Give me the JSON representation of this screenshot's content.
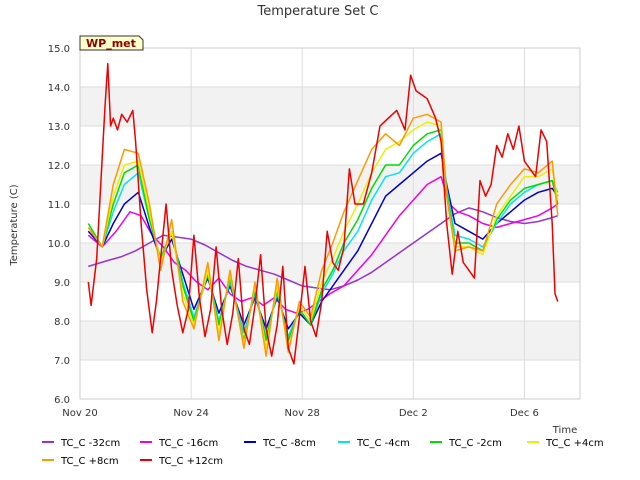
{
  "chart_data": {
    "type": "line",
    "title": "Temperature Set C",
    "xlabel": "Time",
    "ylabel": "Temperature (C)",
    "badge": "WP_met",
    "xlim": [
      0,
      18
    ],
    "ylim": [
      6.0,
      15.0
    ],
    "x_ticks": [
      {
        "x": 0,
        "label": "Nov 20"
      },
      {
        "x": 4,
        "label": "Nov 24"
      },
      {
        "x": 8,
        "label": "Nov 28"
      },
      {
        "x": 12,
        "label": "Dec 2"
      },
      {
        "x": 16,
        "label": "Dec 6"
      }
    ],
    "y_ticks": [
      "6.0",
      "7.0",
      "8.0",
      "9.0",
      "10.0",
      "11.0",
      "12.0",
      "13.0",
      "14.0",
      "15.0"
    ],
    "grid": true,
    "legend_position": "bottom",
    "series": [
      {
        "name": "TC_C -32cm",
        "color": "#9933cc",
        "x": [
          0.3,
          1.0,
          1.5,
          2.0,
          2.5,
          3.0,
          3.5,
          4.0,
          4.5,
          5.0,
          5.5,
          6.0,
          6.5,
          7.0,
          7.5,
          8.0,
          8.5,
          9.0,
          9.5,
          10.0,
          10.5,
          11.0,
          11.5,
          12.0,
          12.5,
          13.0,
          13.5,
          14.0,
          14.5,
          15.0,
          15.5,
          16.0,
          16.5,
          17.0,
          17.2
        ],
        "y": [
          9.4,
          9.55,
          9.65,
          9.8,
          10.0,
          10.2,
          10.15,
          10.1,
          9.95,
          9.75,
          9.55,
          9.4,
          9.3,
          9.2,
          9.05,
          8.9,
          8.85,
          8.8,
          8.9,
          9.05,
          9.25,
          9.5,
          9.75,
          10.0,
          10.25,
          10.5,
          10.75,
          10.9,
          10.8,
          10.65,
          10.55,
          10.5,
          10.55,
          10.65,
          10.7
        ]
      },
      {
        "name": "TC_C -16cm",
        "color": "#ee00ee",
        "x": [
          0.3,
          0.8,
          1.3,
          1.8,
          2.2,
          2.6,
          3.0,
          3.4,
          3.8,
          4.2,
          4.6,
          5.0,
          5.4,
          5.8,
          6.2,
          6.6,
          7.0,
          7.4,
          7.8,
          8.2,
          8.6,
          9.0,
          9.5,
          10.0,
          10.5,
          11.0,
          11.5,
          12.0,
          12.5,
          13.0,
          13.3,
          13.6,
          14.0,
          14.5,
          15.0,
          15.5,
          16.0,
          16.5,
          17.0,
          17.2
        ],
        "y": [
          10.2,
          9.9,
          10.3,
          10.8,
          10.7,
          10.2,
          9.9,
          9.5,
          9.3,
          9.0,
          8.8,
          9.1,
          8.7,
          8.5,
          8.6,
          8.4,
          8.6,
          8.3,
          8.2,
          8.3,
          8.5,
          8.7,
          8.9,
          9.3,
          9.7,
          10.2,
          10.7,
          11.1,
          11.5,
          11.7,
          11.0,
          10.8,
          10.7,
          10.5,
          10.4,
          10.5,
          10.6,
          10.7,
          10.9,
          11.0
        ]
      },
      {
        "name": "TC_C -8cm",
        "color": "#0000cc",
        "x": [
          0.3,
          0.8,
          1.2,
          1.6,
          2.1,
          2.5,
          2.9,
          3.3,
          3.7,
          4.1,
          4.6,
          5.0,
          5.4,
          5.9,
          6.3,
          6.7,
          7.1,
          7.5,
          7.9,
          8.3,
          8.7,
          9.1,
          9.5,
          10.0,
          10.5,
          11.0,
          11.5,
          12.0,
          12.5,
          13.0,
          13.2,
          13.5,
          14.0,
          14.5,
          15.0,
          15.5,
          16.0,
          16.5,
          17.0,
          17.2
        ],
        "y": [
          10.3,
          9.9,
          10.5,
          11.0,
          11.3,
          10.4,
          9.6,
          10.1,
          9.2,
          8.3,
          9.1,
          8.2,
          8.9,
          7.9,
          8.6,
          7.8,
          8.6,
          7.8,
          8.2,
          7.9,
          8.5,
          8.9,
          9.3,
          9.8,
          10.5,
          11.2,
          11.5,
          11.8,
          12.1,
          12.3,
          11.5,
          10.5,
          10.3,
          10.1,
          10.5,
          10.8,
          11.1,
          11.3,
          11.4,
          11.2
        ]
      },
      {
        "name": "TC_C -4cm",
        "color": "#00e5ee",
        "x": [
          0.3,
          0.8,
          1.2,
          1.6,
          2.1,
          2.5,
          2.9,
          3.3,
          3.7,
          4.1,
          4.6,
          5.0,
          5.4,
          5.9,
          6.3,
          6.7,
          7.1,
          7.5,
          7.9,
          8.3,
          8.7,
          9.1,
          9.5,
          10.0,
          10.5,
          11.0,
          11.5,
          12.0,
          12.5,
          13.0,
          13.2,
          13.5,
          14.0,
          14.5,
          15.0,
          15.5,
          16.0,
          16.5,
          17.0,
          17.2
        ],
        "y": [
          10.4,
          9.9,
          10.8,
          11.5,
          11.8,
          10.6,
          9.6,
          10.3,
          9.0,
          8.1,
          9.2,
          8.0,
          9.0,
          7.7,
          8.7,
          7.6,
          8.7,
          7.6,
          8.3,
          7.9,
          8.7,
          9.2,
          9.8,
          10.3,
          11.1,
          11.7,
          11.8,
          12.3,
          12.6,
          12.8,
          11.4,
          10.2,
          10.1,
          9.9,
          10.5,
          11.0,
          11.3,
          11.5,
          11.6,
          11.3
        ]
      },
      {
        "name": "TC_C -2cm",
        "color": "#00dd00",
        "x": [
          0.3,
          0.8,
          1.2,
          1.6,
          2.1,
          2.5,
          2.9,
          3.3,
          3.7,
          4.1,
          4.6,
          5.0,
          5.4,
          5.9,
          6.3,
          6.7,
          7.1,
          7.5,
          7.9,
          8.3,
          8.7,
          9.1,
          9.5,
          10.0,
          10.5,
          11.0,
          11.5,
          12.0,
          12.5,
          13.0,
          13.2,
          13.5,
          14.0,
          14.5,
          15.0,
          15.5,
          16.0,
          16.5,
          17.0,
          17.2
        ],
        "y": [
          10.5,
          9.9,
          11.0,
          11.8,
          12.0,
          10.6,
          9.6,
          10.3,
          8.9,
          8.0,
          9.2,
          7.9,
          9.1,
          7.5,
          8.8,
          7.5,
          8.8,
          7.5,
          8.3,
          7.9,
          8.8,
          9.3,
          10.0,
          10.6,
          11.4,
          12.0,
          12.0,
          12.5,
          12.8,
          12.9,
          11.3,
          10.0,
          10.0,
          9.8,
          10.6,
          11.1,
          11.4,
          11.5,
          11.6,
          11.0
        ]
      },
      {
        "name": "TC_C +4cm",
        "color": "#eeee00",
        "x": [
          0.3,
          0.8,
          1.2,
          1.6,
          2.1,
          2.5,
          2.9,
          3.3,
          3.7,
          4.1,
          4.6,
          5.0,
          5.4,
          5.9,
          6.3,
          6.7,
          7.1,
          7.5,
          7.9,
          8.3,
          8.7,
          9.1,
          9.5,
          10.0,
          10.5,
          11.0,
          11.5,
          12.0,
          12.5,
          13.0,
          13.2,
          13.5,
          14.0,
          14.5,
          15.0,
          15.5,
          16.0,
          16.5,
          17.0,
          17.2
        ],
        "y": [
          10.4,
          9.9,
          11.2,
          12.0,
          12.1,
          10.8,
          9.5,
          10.3,
          8.7,
          7.9,
          9.3,
          7.7,
          9.2,
          7.4,
          8.9,
          7.3,
          8.9,
          7.3,
          8.4,
          8.0,
          9.0,
          9.6,
          10.3,
          11.0,
          11.8,
          12.4,
          12.6,
          12.9,
          13.1,
          13.0,
          11.2,
          9.9,
          9.9,
          9.7,
          10.7,
          11.2,
          11.7,
          11.7,
          11.9,
          11.1
        ]
      },
      {
        "name": "TC_C +8cm",
        "color": "#ff9900",
        "x": [
          0.3,
          0.8,
          1.2,
          1.6,
          2.1,
          2.5,
          2.9,
          3.3,
          3.7,
          4.1,
          4.6,
          5.0,
          5.4,
          5.9,
          6.3,
          6.7,
          7.1,
          7.5,
          7.9,
          8.3,
          8.7,
          9.1,
          9.5,
          10.0,
          10.5,
          11.0,
          11.5,
          12.0,
          12.5,
          13.0,
          13.2,
          13.5,
          14.0,
          14.5,
          15.0,
          15.5,
          16.0,
          16.5,
          17.0,
          17.2
        ],
        "y": [
          10.4,
          9.9,
          11.5,
          12.4,
          12.3,
          11.0,
          9.3,
          10.6,
          8.5,
          7.8,
          9.5,
          7.5,
          9.3,
          7.3,
          9.0,
          7.1,
          9.1,
          7.2,
          8.5,
          8.1,
          9.3,
          10.0,
          10.8,
          11.6,
          12.4,
          12.8,
          12.5,
          13.2,
          13.3,
          13.1,
          11.2,
          9.8,
          9.9,
          9.8,
          11.0,
          11.5,
          11.9,
          11.8,
          12.1,
          10.7
        ]
      },
      {
        "name": "TC_C +12cm",
        "color": "#ee0000",
        "x": [
          0.3,
          0.4,
          0.6,
          0.9,
          1.0,
          1.1,
          1.2,
          1.35,
          1.5,
          1.7,
          1.9,
          2.0,
          2.2,
          2.4,
          2.6,
          2.75,
          2.9,
          3.1,
          3.3,
          3.5,
          3.7,
          3.9,
          4.1,
          4.3,
          4.5,
          4.7,
          4.9,
          5.1,
          5.3,
          5.5,
          5.7,
          5.9,
          6.1,
          6.3,
          6.5,
          6.7,
          6.9,
          7.1,
          7.3,
          7.5,
          7.7,
          7.9,
          8.1,
          8.3,
          8.5,
          8.7,
          8.9,
          9.1,
          9.3,
          9.5,
          9.7,
          9.9,
          10.2,
          10.5,
          10.8,
          11.1,
          11.4,
          11.7,
          11.9,
          12.1,
          12.3,
          12.5,
          12.8,
          13.0,
          13.2,
          13.4,
          13.6,
          13.8,
          14.0,
          14.2,
          14.4,
          14.6,
          14.8,
          15.0,
          15.2,
          15.4,
          15.6,
          15.8,
          16.0,
          16.2,
          16.4,
          16.6,
          16.8,
          17.0,
          17.1,
          17.2
        ],
        "y": [
          9.0,
          8.4,
          9.6,
          13.5,
          14.6,
          13.0,
          13.2,
          12.9,
          13.3,
          13.1,
          13.4,
          12.6,
          10.5,
          8.8,
          7.7,
          8.5,
          9.6,
          11.0,
          9.3,
          8.4,
          7.7,
          8.3,
          10.2,
          8.6,
          7.6,
          8.3,
          9.9,
          8.3,
          7.4,
          8.2,
          9.6,
          7.8,
          7.4,
          8.4,
          9.7,
          7.8,
          7.1,
          7.9,
          9.4,
          7.3,
          6.9,
          8.1,
          9.4,
          8.0,
          7.6,
          8.5,
          10.3,
          9.5,
          9.3,
          9.9,
          11.9,
          11.0,
          11.0,
          11.8,
          13.0,
          13.2,
          13.4,
          12.9,
          14.3,
          13.9,
          13.8,
          13.7,
          13.2,
          12.6,
          10.5,
          9.2,
          10.3,
          9.5,
          9.3,
          9.1,
          11.6,
          11.2,
          11.5,
          12.5,
          12.2,
          12.8,
          12.4,
          13.0,
          12.1,
          11.9,
          11.7,
          12.9,
          12.6,
          10.5,
          8.7,
          8.5
        ]
      }
    ]
  }
}
